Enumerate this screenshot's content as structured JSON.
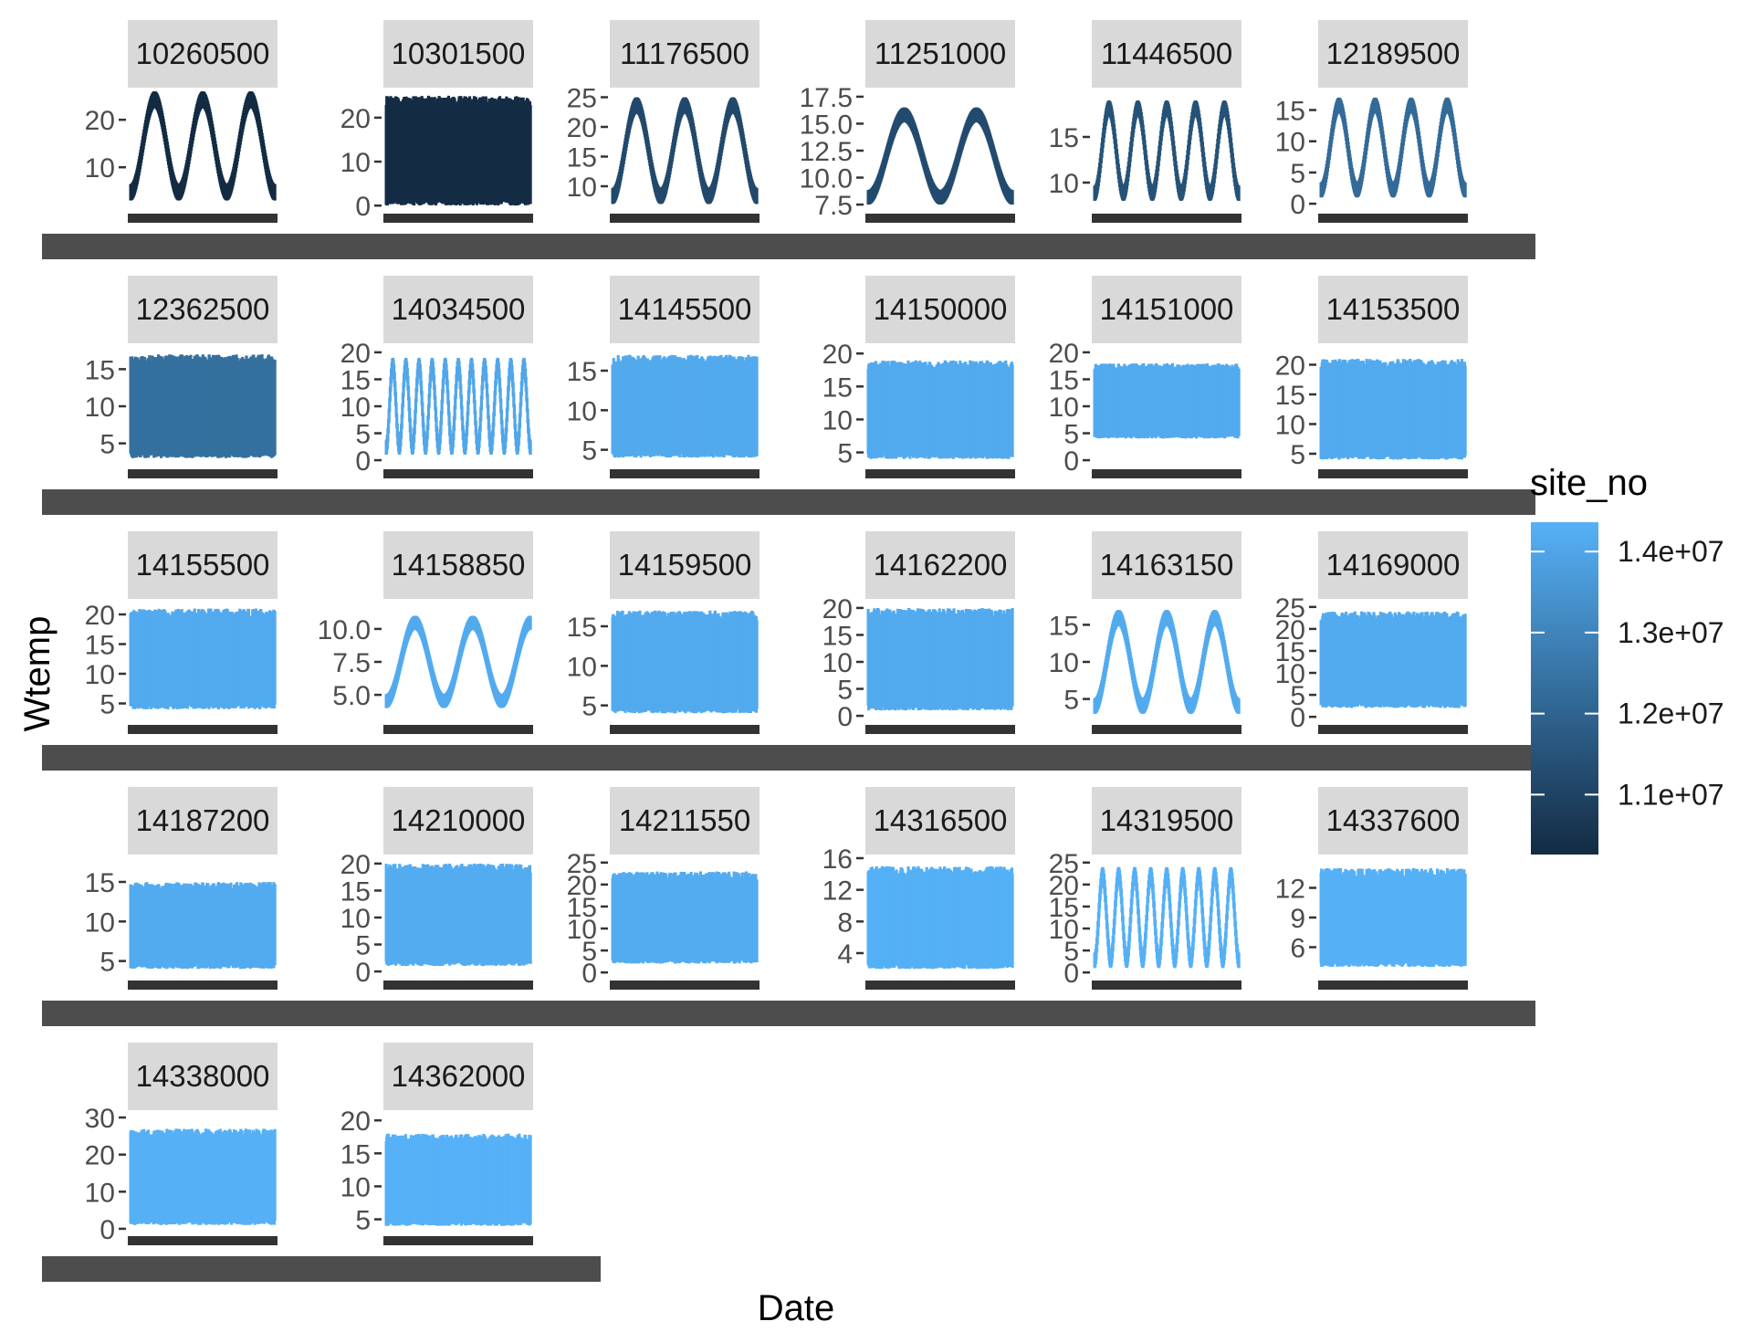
{
  "chart_data": {
    "type": "scatter",
    "xlabel": "Date",
    "ylabel": "Wtemp",
    "facet_layout": {
      "ncol": 6,
      "nrow": 5
    },
    "scales": "free_y",
    "legend": {
      "title": "site_no",
      "position": "right",
      "type": "continuous",
      "range": [
        10260500,
        14362000
      ],
      "breaks": [
        11000000,
        12000000,
        13000000,
        14000000
      ],
      "labels": [
        "1.1e+07",
        "1.2e+07",
        "1.3e+07",
        "1.4e+07"
      ],
      "low_color": "#132b43",
      "high_color": "#56b1f7"
    },
    "panels": [
      {
        "site": "10260500",
        "value": 10260500,
        "yrange": [
          1,
          26
        ],
        "ticks": [
          10,
          20
        ],
        "tick_labels": [
          "10",
          "20"
        ],
        "pattern": "seasonal",
        "cycles": 3,
        "min": 3,
        "max": 26
      },
      {
        "site": "10301500",
        "value": 10301500,
        "yrange": [
          -1,
          26
        ],
        "ticks": [
          0,
          10,
          20
        ],
        "tick_labels": [
          "0",
          "10",
          "20"
        ],
        "pattern": "dense",
        "min": 0,
        "max": 25
      },
      {
        "site": "11176500",
        "value": 11176500,
        "yrange": [
          6,
          26
        ],
        "ticks": [
          10,
          15,
          20,
          25
        ],
        "tick_labels": [
          "10",
          "15",
          "20",
          "25"
        ],
        "pattern": "seasonal",
        "cycles": 3,
        "min": 7,
        "max": 25
      },
      {
        "site": "11251000",
        "value": 11251000,
        "yrange": [
          7,
          18
        ],
        "ticks": [
          7.5,
          10.0,
          12.5,
          15.0,
          17.5
        ],
        "tick_labels": [
          "7.5",
          "10.0",
          "12.5",
          "15.0",
          "17.5"
        ],
        "pattern": "seasonal",
        "cycles": 2,
        "min": 7.5,
        "max": 16.5
      },
      {
        "site": "11446500",
        "value": 11446500,
        "yrange": [
          7,
          20
        ],
        "ticks": [
          10,
          15
        ],
        "tick_labels": [
          "10",
          "15"
        ],
        "pattern": "seasonal",
        "cycles": 5,
        "min": 8,
        "max": 19
      },
      {
        "site": "12189500",
        "value": 12189500,
        "yrange": [
          -1,
          18
        ],
        "ticks": [
          0,
          5,
          10,
          15
        ],
        "tick_labels": [
          "0",
          "5",
          "10",
          "15"
        ],
        "pattern": "seasonal",
        "cycles": 4,
        "min": 1,
        "max": 17
      },
      {
        "site": "12362500",
        "value": 12362500,
        "yrange": [
          2,
          18
        ],
        "ticks": [
          5,
          10,
          15
        ],
        "tick_labels": [
          "5",
          "10",
          "15"
        ],
        "pattern": "dense",
        "min": 3,
        "max": 17
      },
      {
        "site": "14034500",
        "value": 14034500,
        "yrange": [
          -1,
          21
        ],
        "ticks": [
          0,
          5,
          10,
          15,
          20
        ],
        "tick_labels": [
          "0",
          "5",
          "10",
          "15",
          "20"
        ],
        "pattern": "seasonal",
        "cycles": 11,
        "min": 1,
        "max": 19
      },
      {
        "site": "14145500",
        "value": 14145500,
        "yrange": [
          3,
          18
        ],
        "ticks": [
          5,
          10,
          15
        ],
        "tick_labels": [
          "5",
          "10",
          "15"
        ],
        "pattern": "dense",
        "min": 4,
        "max": 17
      },
      {
        "site": "14150000",
        "value": 14150000,
        "yrange": [
          3,
          21
        ],
        "ticks": [
          5,
          10,
          15,
          20
        ],
        "tick_labels": [
          "5",
          "10",
          "15",
          "20"
        ],
        "pattern": "dense",
        "min": 4,
        "max": 19
      },
      {
        "site": "14151000",
        "value": 14151000,
        "yrange": [
          -1,
          21
        ],
        "ticks": [
          0,
          5,
          10,
          15,
          20
        ],
        "tick_labels": [
          "0",
          "5",
          "10",
          "15",
          "20"
        ],
        "pattern": "dense",
        "min": 4,
        "max": 18
      },
      {
        "site": "14153500",
        "value": 14153500,
        "yrange": [
          3,
          23
        ],
        "ticks": [
          5,
          10,
          15,
          20
        ],
        "tick_labels": [
          "5",
          "10",
          "15",
          "20"
        ],
        "pattern": "dense",
        "min": 4,
        "max": 21
      },
      {
        "site": "14155500",
        "value": 14155500,
        "yrange": [
          2,
          22
        ],
        "ticks": [
          5,
          10,
          15,
          20
        ],
        "tick_labels": [
          "5",
          "10",
          "15",
          "20"
        ],
        "pattern": "dense",
        "min": 4,
        "max": 21
      },
      {
        "site": "14158850",
        "value": 14158850,
        "yrange": [
          3,
          12
        ],
        "ticks": [
          5.0,
          7.5,
          10.0
        ],
        "tick_labels": [
          "5.0",
          "7.5",
          "10.0"
        ],
        "pattern": "seasonal",
        "cycles": 2.5,
        "min": 4,
        "max": 11
      },
      {
        "site": "14159500",
        "value": 14159500,
        "yrange": [
          3,
          18
        ],
        "ticks": [
          5,
          10,
          15
        ],
        "tick_labels": [
          "5",
          "10",
          "15"
        ],
        "pattern": "dense",
        "min": 4,
        "max": 17
      },
      {
        "site": "14162200",
        "value": 14162200,
        "yrange": [
          -1,
          21
        ],
        "ticks": [
          0,
          5,
          10,
          15,
          20
        ],
        "tick_labels": [
          "0",
          "5",
          "10",
          "15",
          "20"
        ],
        "pattern": "dense",
        "min": 1,
        "max": 20
      },
      {
        "site": "14163150",
        "value": 14163150,
        "yrange": [
          2,
          18
        ],
        "ticks": [
          5,
          10,
          15
        ],
        "tick_labels": [
          "5",
          "10",
          "15"
        ],
        "pattern": "seasonal",
        "cycles": 3,
        "min": 3,
        "max": 17
      },
      {
        "site": "14169000",
        "value": 14169000,
        "yrange": [
          -1,
          26
        ],
        "ticks": [
          0,
          5,
          10,
          15,
          20,
          25
        ],
        "tick_labels": [
          "0",
          "5",
          "10",
          "15",
          "20",
          "25"
        ],
        "pattern": "dense",
        "min": 2,
        "max": 24
      },
      {
        "site": "14187200",
        "value": 14187200,
        "yrange": [
          3,
          18
        ],
        "ticks": [
          5,
          10,
          15
        ],
        "tick_labels": [
          "5",
          "10",
          "15"
        ],
        "pattern": "dense",
        "min": 4,
        "max": 15
      },
      {
        "site": "14210000",
        "value": 14210000,
        "yrange": [
          -1,
          21
        ],
        "ticks": [
          0,
          5,
          10,
          15,
          20
        ],
        "tick_labels": [
          "0",
          "5",
          "10",
          "15",
          "20"
        ],
        "pattern": "dense",
        "min": 1,
        "max": 20
      },
      {
        "site": "14211550",
        "value": 14211550,
        "yrange": [
          -1,
          26
        ],
        "ticks": [
          0,
          5,
          10,
          15,
          20,
          25
        ],
        "tick_labels": [
          "0",
          "5",
          "10",
          "15",
          "20",
          "25"
        ],
        "pattern": "dense",
        "min": 2,
        "max": 23
      },
      {
        "site": "14316500",
        "value": 14316500,
        "yrange": [
          1,
          16
        ],
        "ticks": [
          4,
          8,
          12,
          16
        ],
        "tick_labels": [
          "4",
          "8",
          "12",
          "16"
        ],
        "pattern": "dense",
        "min": 2,
        "max": 15
      },
      {
        "site": "14319500",
        "value": 14319500,
        "yrange": [
          -1,
          26
        ],
        "ticks": [
          0,
          5,
          10,
          15,
          20,
          25
        ],
        "tick_labels": [
          "0",
          "5",
          "10",
          "15",
          "20",
          "25"
        ],
        "pattern": "seasonal",
        "cycles": 9,
        "min": 1,
        "max": 24
      },
      {
        "site": "14337600",
        "value": 14337600,
        "yrange": [
          3,
          15
        ],
        "ticks": [
          6,
          9,
          12
        ],
        "tick_labels": [
          "6",
          "9",
          "12"
        ],
        "pattern": "dense",
        "min": 4,
        "max": 14
      },
      {
        "site": "14338000",
        "value": 14338000,
        "yrange": [
          -1,
          31
        ],
        "ticks": [
          0,
          10,
          20,
          30
        ],
        "tick_labels": [
          "0",
          "10",
          "20",
          "30"
        ],
        "pattern": "dense",
        "min": 1,
        "max": 27
      },
      {
        "site": "14362000",
        "value": 14362000,
        "yrange": [
          3,
          21
        ],
        "ticks": [
          5,
          10,
          15,
          20
        ],
        "tick_labels": [
          "5",
          "10",
          "15",
          "20"
        ],
        "pattern": "dense",
        "min": 4,
        "max": 18
      }
    ]
  }
}
